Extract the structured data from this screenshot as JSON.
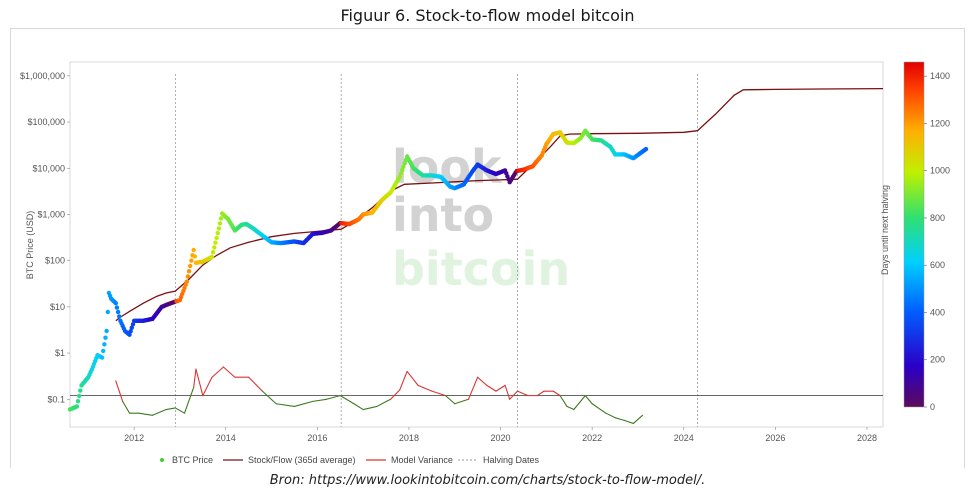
{
  "figure_title": "Figuur 6. Stock-to-flow model bitcoin",
  "source": "Bron: https://www.lookintobitcoin.com/charts/stock-to-flow-model/.",
  "watermark": [
    "look",
    "into",
    "bitcoin"
  ],
  "colors": {
    "stock_flow": "#7a1010",
    "variance": "#dd3333",
    "variance_low": "#3d7a20",
    "halving": "#999999",
    "baseline": "#333333"
  },
  "chart_data": {
    "type": "scatter",
    "title": "Stock-to-flow model bitcoin",
    "ylabel": "BTC Price (USD)",
    "colorbar_label": "Days until next halving",
    "xlim": [
      2010.6,
      2028.35
    ],
    "ylim_log10": [
      -1.6,
      6.3
    ],
    "y_ticks": [
      {
        "value": 1000000,
        "label": "$1,000,000"
      },
      {
        "value": 100000,
        "label": "$100,000"
      },
      {
        "value": 10000,
        "label": "$10,000"
      },
      {
        "value": 1000,
        "label": "$1,000"
      },
      {
        "value": 100,
        "label": "$100"
      },
      {
        "value": 10,
        "label": "$10"
      },
      {
        "value": 1,
        "label": "$1"
      },
      {
        "value": 0.1,
        "label": "$0.1"
      }
    ],
    "x_ticks": [
      {
        "value": 2012,
        "label": "2012"
      },
      {
        "value": 2014,
        "label": "2014"
      },
      {
        "value": 2016,
        "label": "2016"
      },
      {
        "value": 2018,
        "label": "2018"
      },
      {
        "value": 2020,
        "label": "2020"
      },
      {
        "value": 2022,
        "label": "2022"
      },
      {
        "value": 2024,
        "label": "2024"
      },
      {
        "value": 2026,
        "label": "2026"
      },
      {
        "value": 2028,
        "label": "2028"
      }
    ],
    "halving_dates": [
      2012.9,
      2016.52,
      2020.37,
      2024.3
    ],
    "variance_baseline": 0.12,
    "colorbar": {
      "min": 0,
      "max": 1460,
      "ticks": [
        0,
        200,
        400,
        600,
        800,
        1000,
        1200,
        1400
      ]
    },
    "legend": [
      "BTC Price",
      "Stock/Flow (365d average)",
      "Model Variance",
      "Halving Dates"
    ],
    "btc_price": [
      [
        2010.6,
        0.06
      ],
      [
        2010.75,
        0.07
      ],
      [
        2010.85,
        0.2
      ],
      [
        2011.0,
        0.3
      ],
      [
        2011.1,
        0.5
      ],
      [
        2011.2,
        0.9
      ],
      [
        2011.3,
        0.8
      ],
      [
        2011.4,
        3
      ],
      [
        2011.45,
        20
      ],
      [
        2011.5,
        15
      ],
      [
        2011.6,
        12
      ],
      [
        2011.7,
        5
      ],
      [
        2011.8,
        3
      ],
      [
        2011.9,
        2.5
      ],
      [
        2012.0,
        5
      ],
      [
        2012.2,
        5
      ],
      [
        2012.4,
        5.5
      ],
      [
        2012.6,
        10
      ],
      [
        2012.8,
        12
      ],
      [
        2012.9,
        13
      ],
      [
        2013.0,
        14
      ],
      [
        2013.15,
        35
      ],
      [
        2013.3,
        170
      ],
      [
        2013.35,
        90
      ],
      [
        2013.5,
        95
      ],
      [
        2013.7,
        120
      ],
      [
        2013.85,
        500
      ],
      [
        2013.92,
        1050
      ],
      [
        2014.05,
        800
      ],
      [
        2014.2,
        450
      ],
      [
        2014.35,
        600
      ],
      [
        2014.45,
        620
      ],
      [
        2014.6,
        500
      ],
      [
        2014.8,
        350
      ],
      [
        2015.0,
        250
      ],
      [
        2015.2,
        240
      ],
      [
        2015.5,
        260
      ],
      [
        2015.7,
        240
      ],
      [
        2015.9,
        380
      ],
      [
        2016.1,
        400
      ],
      [
        2016.3,
        450
      ],
      [
        2016.5,
        650
      ],
      [
        2016.7,
        620
      ],
      [
        2016.9,
        780
      ],
      [
        2017.0,
        1000
      ],
      [
        2017.2,
        1100
      ],
      [
        2017.4,
        2000
      ],
      [
        2017.6,
        3000
      ],
      [
        2017.8,
        6500
      ],
      [
        2017.96,
        18000
      ],
      [
        2018.1,
        10000
      ],
      [
        2018.3,
        7000
      ],
      [
        2018.5,
        7000
      ],
      [
        2018.7,
        6500
      ],
      [
        2018.9,
        4000
      ],
      [
        2019.0,
        3700
      ],
      [
        2019.2,
        4500
      ],
      [
        2019.4,
        9000
      ],
      [
        2019.5,
        12000
      ],
      [
        2019.7,
        9000
      ],
      [
        2019.9,
        7500
      ],
      [
        2020.1,
        9000
      ],
      [
        2020.2,
        5000
      ],
      [
        2020.35,
        8700
      ],
      [
        2020.5,
        9300
      ],
      [
        2020.7,
        11000
      ],
      [
        2020.9,
        19000
      ],
      [
        2021.0,
        33000
      ],
      [
        2021.15,
        55000
      ],
      [
        2021.3,
        60000
      ],
      [
        2021.45,
        36000
      ],
      [
        2021.6,
        35000
      ],
      [
        2021.75,
        45000
      ],
      [
        2021.85,
        65000
      ],
      [
        2022.0,
        42000
      ],
      [
        2022.2,
        40000
      ],
      [
        2022.4,
        29000
      ],
      [
        2022.5,
        20000
      ],
      [
        2022.7,
        20000
      ],
      [
        2022.9,
        16500
      ],
      [
        2023.1,
        23000
      ],
      [
        2023.2,
        27000
      ]
    ],
    "stock_flow_model": [
      [
        2011.6,
        5
      ],
      [
        2011.7,
        6
      ],
      [
        2011.9,
        8
      ],
      [
        2012.2,
        12
      ],
      [
        2012.5,
        17
      ],
      [
        2012.7,
        20
      ],
      [
        2012.9,
        22
      ],
      [
        2013.2,
        40
      ],
      [
        2013.5,
        80
      ],
      [
        2013.8,
        130
      ],
      [
        2014.1,
        190
      ],
      [
        2014.5,
        250
      ],
      [
        2015.0,
        330
      ],
      [
        2015.5,
        390
      ],
      [
        2016.0,
        430
      ],
      [
        2016.52,
        480
      ],
      [
        2016.8,
        700
      ],
      [
        2017.2,
        1400
      ],
      [
        2017.6,
        3200
      ],
      [
        2017.9,
        4500
      ],
      [
        2018.5,
        4800
      ],
      [
        2019.0,
        5100
      ],
      [
        2019.5,
        5400
      ],
      [
        2020.0,
        5600
      ],
      [
        2020.37,
        5800
      ],
      [
        2020.7,
        12000
      ],
      [
        2021.1,
        30000
      ],
      [
        2021.3,
        50000
      ],
      [
        2021.5,
        55000
      ],
      [
        2022.0,
        56000
      ],
      [
        2023.0,
        57000
      ],
      [
        2024.0,
        60000
      ],
      [
        2024.3,
        65000
      ],
      [
        2024.7,
        150000
      ],
      [
        2025.1,
        380000
      ],
      [
        2025.3,
        500000
      ],
      [
        2026.0,
        510000
      ],
      [
        2027.0,
        520000
      ],
      [
        2028.35,
        530000
      ]
    ],
    "model_variance": [
      [
        2011.6,
        0.25
      ],
      [
        2011.75,
        0.09
      ],
      [
        2011.9,
        0.05
      ],
      [
        2012.1,
        0.05
      ],
      [
        2012.4,
        0.045
      ],
      [
        2012.7,
        0.06
      ],
      [
        2012.9,
        0.065
      ],
      [
        2013.1,
        0.05
      ],
      [
        2013.3,
        0.18
      ],
      [
        2013.35,
        0.45
      ],
      [
        2013.5,
        0.12
      ],
      [
        2013.7,
        0.3
      ],
      [
        2013.95,
        0.5
      ],
      [
        2014.2,
        0.3
      ],
      [
        2014.5,
        0.3
      ],
      [
        2014.8,
        0.15
      ],
      [
        2015.1,
        0.08
      ],
      [
        2015.5,
        0.07
      ],
      [
        2015.9,
        0.09
      ],
      [
        2016.2,
        0.1
      ],
      [
        2016.5,
        0.12
      ],
      [
        2016.8,
        0.08
      ],
      [
        2017.0,
        0.06
      ],
      [
        2017.3,
        0.07
      ],
      [
        2017.6,
        0.1
      ],
      [
        2017.8,
        0.16
      ],
      [
        2017.96,
        0.4
      ],
      [
        2018.2,
        0.2
      ],
      [
        2018.5,
        0.15
      ],
      [
        2018.8,
        0.12
      ],
      [
        2019.0,
        0.08
      ],
      [
        2019.3,
        0.1
      ],
      [
        2019.5,
        0.3
      ],
      [
        2019.7,
        0.2
      ],
      [
        2019.9,
        0.15
      ],
      [
        2020.1,
        0.2
      ],
      [
        2020.2,
        0.1
      ],
      [
        2020.37,
        0.15
      ],
      [
        2020.6,
        0.12
      ],
      [
        2020.8,
        0.12
      ],
      [
        2020.95,
        0.15
      ],
      [
        2021.15,
        0.15
      ],
      [
        2021.3,
        0.12
      ],
      [
        2021.45,
        0.07
      ],
      [
        2021.6,
        0.06
      ],
      [
        2021.85,
        0.12
      ],
      [
        2022.0,
        0.08
      ],
      [
        2022.3,
        0.05
      ],
      [
        2022.5,
        0.04
      ],
      [
        2022.7,
        0.035
      ],
      [
        2022.9,
        0.03
      ],
      [
        2023.1,
        0.045
      ]
    ]
  }
}
